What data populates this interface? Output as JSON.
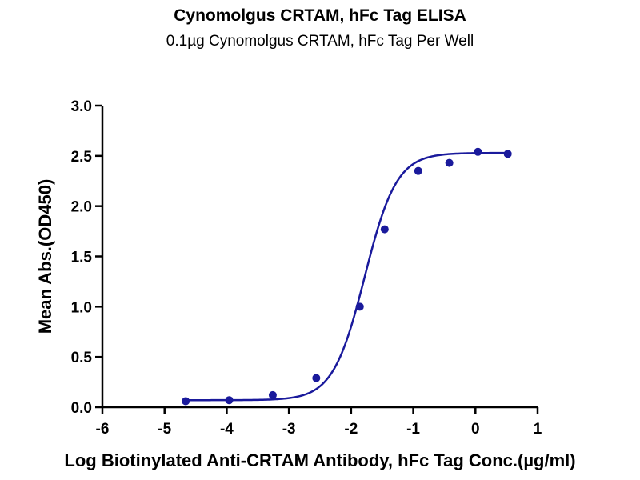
{
  "chart_data": {
    "type": "scatter",
    "title": "Cynomolgus CRTAM, hFc Tag ELISA",
    "subtitle": "0.1µg Cynomolgus CRTAM, hFc Tag Per Well",
    "xlabel": "Log Biotinylated Anti-CRTAM Antibody, hFc Tag Conc.(µg/ml)",
    "ylabel": "Mean Abs.(OD450)",
    "xlim": [
      -6,
      1
    ],
    "ylim": [
      0,
      3.0
    ],
    "xticks": [
      -6,
      -5,
      -4,
      -3,
      -2,
      -1,
      0,
      1
    ],
    "yticks": [
      "0.0",
      "0.5",
      "1.0",
      "1.5",
      "2.0",
      "2.5",
      "3.0"
    ],
    "grid": false,
    "series": [
      {
        "points": [
          {
            "x": -4.66,
            "y": 0.06
          },
          {
            "x": -3.96,
            "y": 0.07
          },
          {
            "x": -3.26,
            "y": 0.12
          },
          {
            "x": -2.56,
            "y": 0.29
          },
          {
            "x": -1.86,
            "y": 1.0
          },
          {
            "x": -1.46,
            "y": 1.77
          },
          {
            "x": -0.92,
            "y": 2.35
          },
          {
            "x": -0.42,
            "y": 2.43
          },
          {
            "x": 0.04,
            "y": 2.54
          },
          {
            "x": 0.52,
            "y": 2.52
          }
        ],
        "fit": {
          "model": "4PL",
          "bottom": 0.07,
          "top": 2.53,
          "logEC50": -1.78,
          "hill": 1.7
        }
      }
    ],
    "colors": {
      "series": "#1a1a9c",
      "axis": "#000000"
    }
  }
}
